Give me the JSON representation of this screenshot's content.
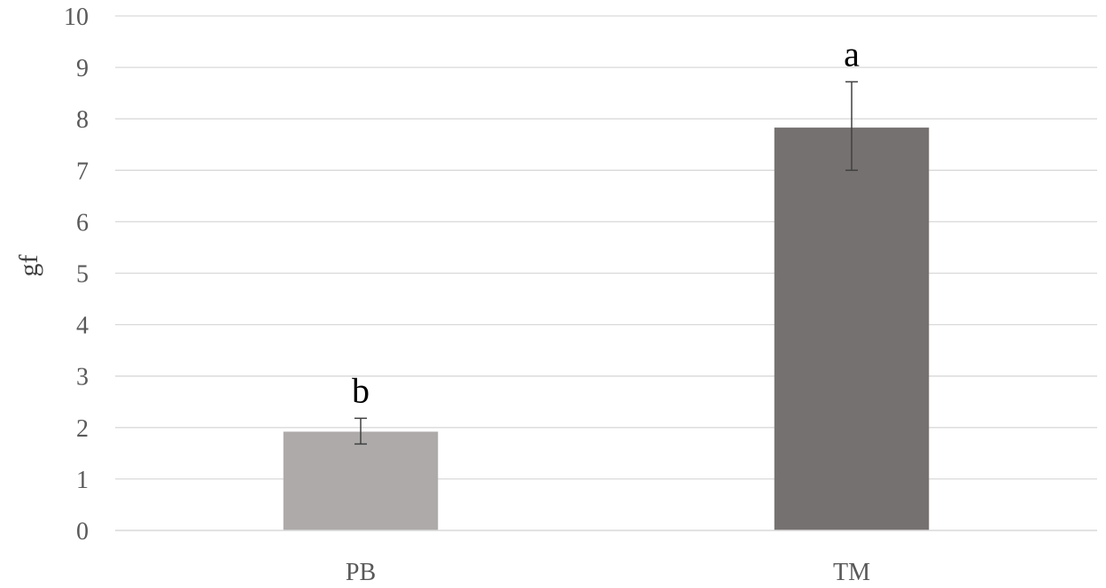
{
  "chart_data": {
    "type": "bar",
    "title": "",
    "xlabel": "",
    "ylabel": "gf",
    "ylim": [
      0,
      10
    ],
    "yticks": [
      0,
      1,
      2,
      3,
      4,
      5,
      6,
      7,
      8,
      9,
      10
    ],
    "grid": true,
    "legend": "none",
    "categories": [
      "PB",
      "TM"
    ],
    "values": [
      1.92,
      7.83
    ],
    "error_low": [
      1.68,
      7.0
    ],
    "error_high": [
      2.18,
      8.72
    ],
    "annotations": [
      "b",
      "a"
    ],
    "bar_colors": [
      "#aeaaaa",
      "#767171"
    ]
  }
}
